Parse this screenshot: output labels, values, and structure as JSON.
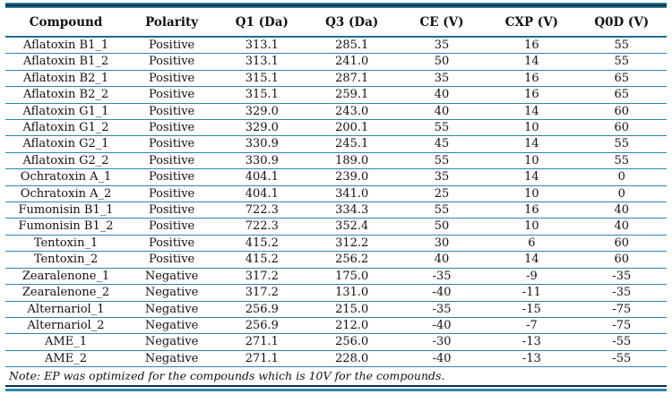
{
  "table": {
    "columns": [
      "Compound",
      "Polarity",
      "Q1 (Da)",
      "Q3 (Da)",
      "CE (V)",
      "CXP (V)",
      "Q0D (V)"
    ],
    "rows": [
      [
        "Aflatoxin B1_1",
        "Positive",
        "313.1",
        "285.1",
        "35",
        "16",
        "55"
      ],
      [
        "Aflatoxin B1_2",
        "Positive",
        "313.1",
        "241.0",
        "50",
        "14",
        "55"
      ],
      [
        "Aflatoxin B2_1",
        "Positive",
        "315.1",
        "287.1",
        "35",
        "16",
        "65"
      ],
      [
        "Aflatoxin B2_2",
        "Positive",
        "315.1",
        "259.1",
        "40",
        "16",
        "65"
      ],
      [
        "Aflatoxin G1_1",
        "Positive",
        "329.0",
        "243.0",
        "40",
        "14",
        "60"
      ],
      [
        "Aflatoxin G1_2",
        "Positive",
        "329.0",
        "200.1",
        "55",
        "10",
        "60"
      ],
      [
        "Aflatoxin G2_1",
        "Positive",
        "330.9",
        "245.1",
        "45",
        "14",
        "55"
      ],
      [
        "Aflatoxin G2_2",
        "Positive",
        "330.9",
        "189.0",
        "55",
        "10",
        "55"
      ],
      [
        "Ochratoxin A_1",
        "Positive",
        "404.1",
        "239.0",
        "35",
        "14",
        "0"
      ],
      [
        "Ochratoxin A_2",
        "Positive",
        "404.1",
        "341.0",
        "25",
        "10",
        "0"
      ],
      [
        "Fumonisin B1_1",
        "Positive",
        "722.3",
        "334.3",
        "55",
        "16",
        "40"
      ],
      [
        "Fumonisin B1_2",
        "Positive",
        "722.3",
        "352.4",
        "50",
        "10",
        "40"
      ],
      [
        "Tentoxin_1",
        "Positive",
        "415.2",
        "312.2",
        "30",
        "6",
        "60"
      ],
      [
        "Tentoxin_2",
        "Positive",
        "415.2",
        "256.2",
        "40",
        "14",
        "60"
      ],
      [
        "Zearalenone_1",
        "Negative",
        "317.2",
        "175.0",
        "-35",
        "-9",
        "-35"
      ],
      [
        "Zearalenone_2",
        "Negative",
        "317.2",
        "131.0",
        "-40",
        "-11",
        "-35"
      ],
      [
        "Alternariol_1",
        "Negative",
        "256.9",
        "215.0",
        "-35",
        "-15",
        "-75"
      ],
      [
        "Alternariol_2",
        "Negative",
        "256.9",
        "212.0",
        "-40",
        "-7",
        "-75"
      ],
      [
        "AME_1",
        "Negative",
        "271.1",
        "256.0",
        "-30",
        "-13",
        "-55"
      ],
      [
        "AME_2",
        "Negative",
        "271.1",
        "228.0",
        "-40",
        "-13",
        "-55"
      ]
    ],
    "note": "Note: EP was optimized for the compounds which is 10V for the compounds."
  },
  "colors": {
    "rule_teal": "#2e86ab",
    "rule_header": "#1d6e94",
    "rule_dark": "#16394f",
    "rule_dark_bottom": "#0f2f44",
    "text": "#111111"
  }
}
